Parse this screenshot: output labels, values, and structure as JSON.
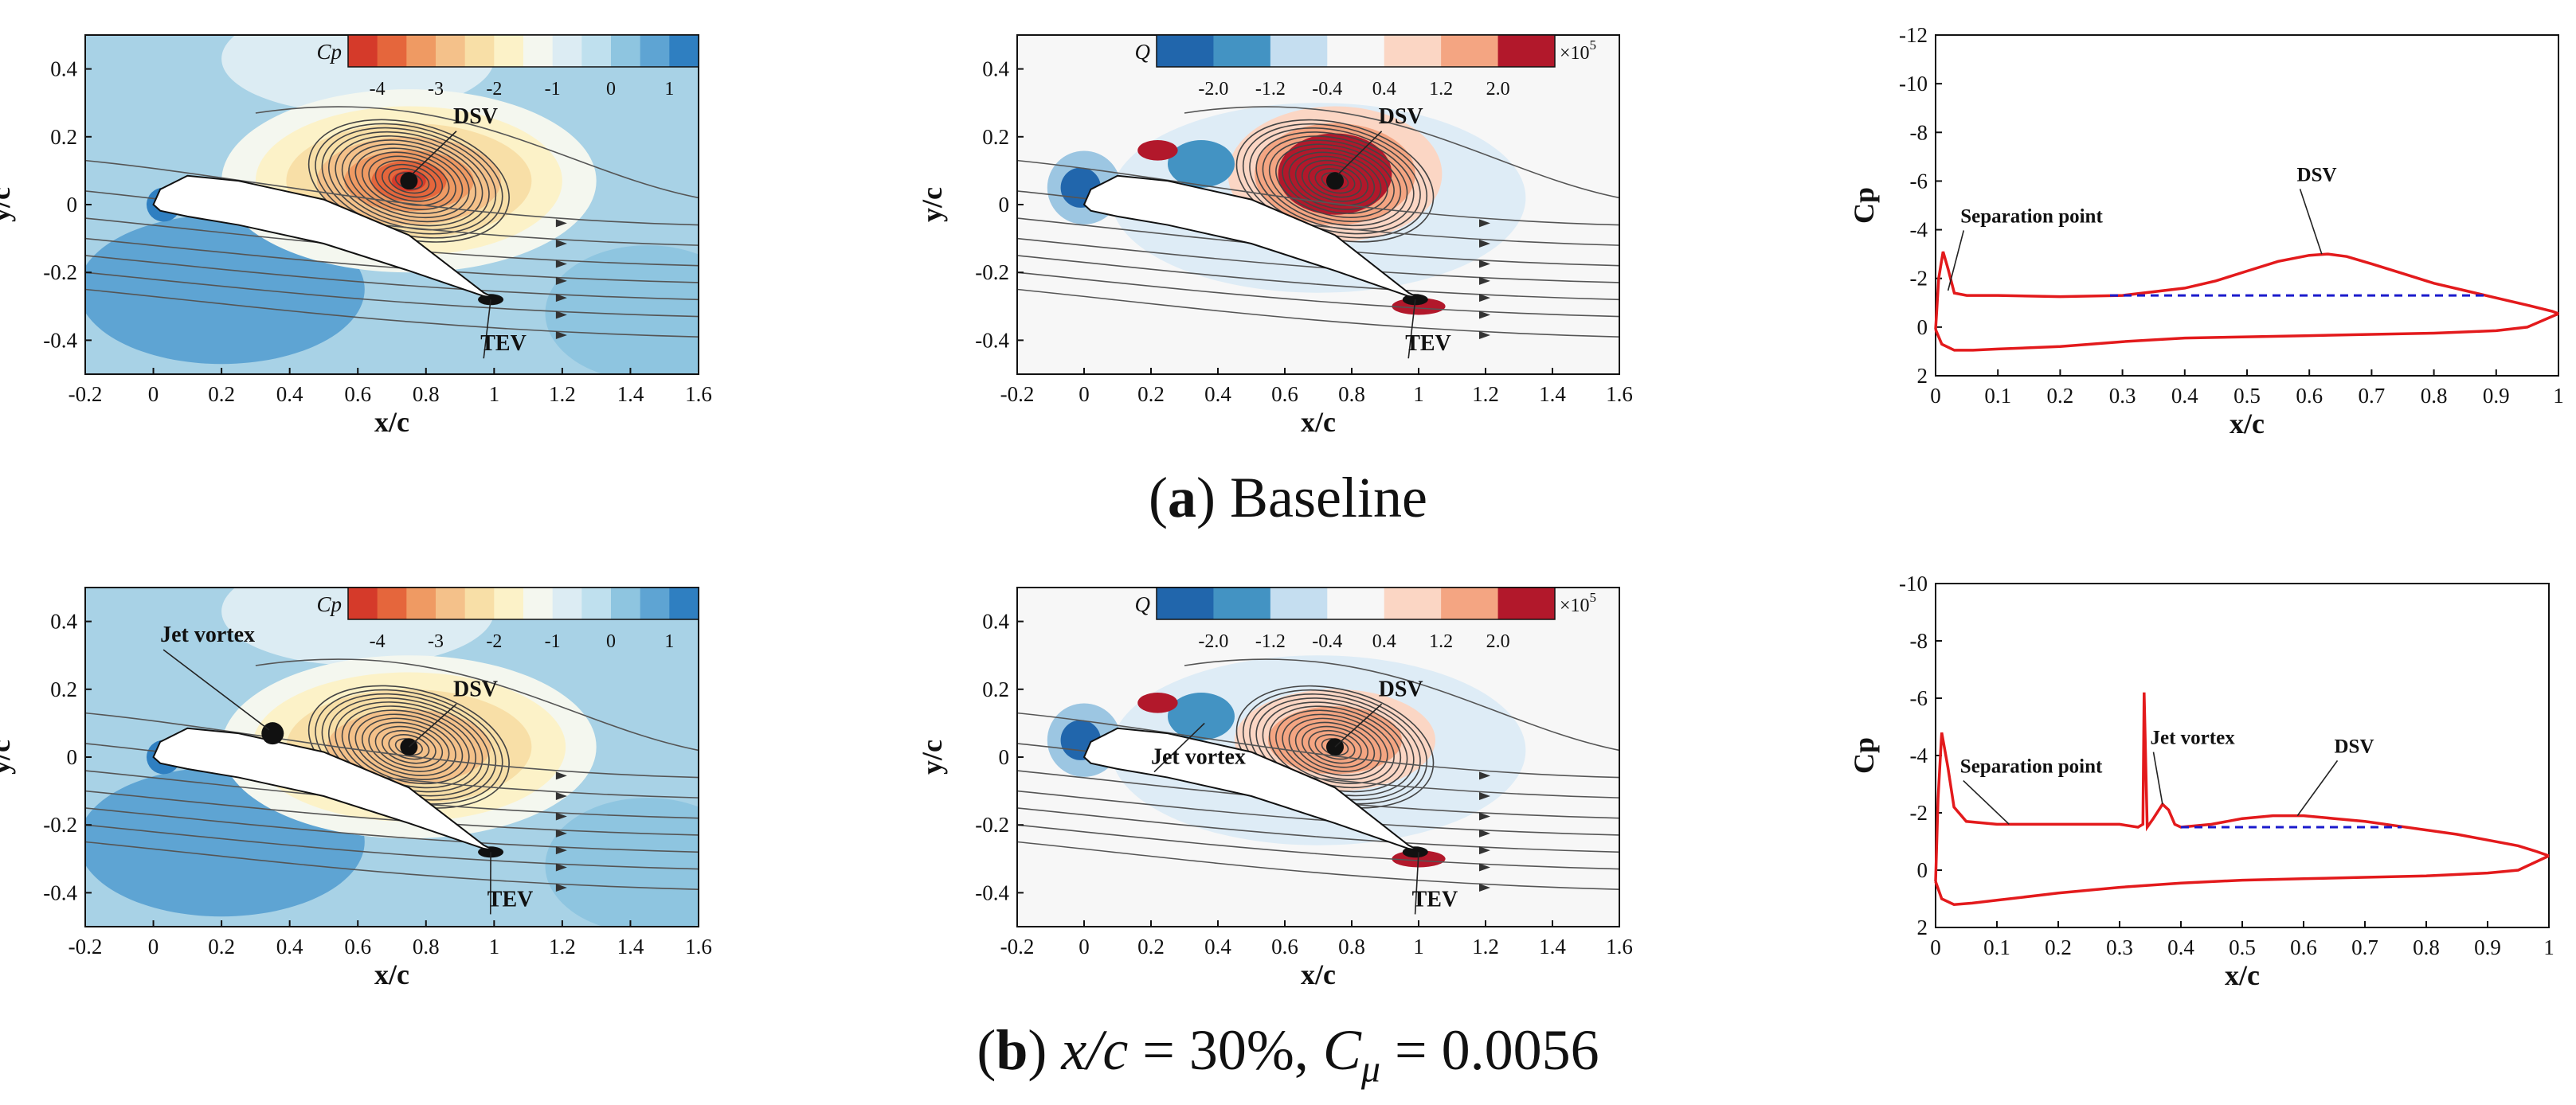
{
  "captions": {
    "a": {
      "letter": "a",
      "text": " Baseline"
    },
    "b": {
      "letter": "b",
      "xc": "x/c",
      "eq1": " = 30%, ",
      "cmu_c": "C",
      "cmu_sub": "μ",
      "eq2": " = 0.0056"
    }
  },
  "chart_data": [
    {
      "id": "a-cp-field",
      "type": "contour",
      "title": "",
      "xlabel": "x/c",
      "ylabel": "y/c",
      "xlim": [
        -0.2,
        1.6
      ],
      "ylim": [
        -0.5,
        0.5
      ],
      "xticks": [
        "-0.2",
        "0",
        "0.2",
        "0.4",
        "0.6",
        "0.8",
        "1",
        "1.2",
        "1.4",
        "1.6"
      ],
      "yticks": [
        "0.4",
        "0.2",
        "0",
        "-0.2",
        "-0.4"
      ],
      "colorbar": {
        "variable": "Cp",
        "ticks": [
          "-4",
          "-3",
          "-2",
          "-1",
          "0",
          "1"
        ],
        "range": [
          -4.5,
          1.5
        ],
        "colors": [
          "#d53a2a",
          "#e5663c",
          "#ef9a63",
          "#f4c18a",
          "#f8dfa7",
          "#fcf2c8",
          "#f4f7ef",
          "#dcecf3",
          "#bfe0ee",
          "#8ec5e0",
          "#5ea4d3",
          "#2f7fc1"
        ]
      },
      "annotations": [
        {
          "label": "DSV",
          "x": 0.88,
          "y": 0.24,
          "tx": 0.76,
          "ty": 0.09
        },
        {
          "label": "TEV",
          "x": 0.96,
          "y": -0.43,
          "tx": 0.99,
          "ty": -0.28
        }
      ],
      "vortex_centers": [
        {
          "x": 0.75,
          "y": 0.07
        }
      ]
    },
    {
      "id": "a-q-field",
      "type": "contour",
      "title": "",
      "xlabel": "x/c",
      "ylabel": "y/c",
      "xlim": [
        -0.2,
        1.6
      ],
      "ylim": [
        -0.5,
        0.5
      ],
      "xticks": [
        "-0.2",
        "0",
        "0.2",
        "0.4",
        "0.6",
        "0.8",
        "1",
        "1.2",
        "1.4",
        "1.6"
      ],
      "yticks": [
        "0.4",
        "0.2",
        "0",
        "-0.2",
        "-0.4"
      ],
      "colorbar": {
        "variable": "Q",
        "ticks": [
          "-2.0",
          "-1.2",
          "-0.4",
          "0.4",
          "1.2",
          "2.0"
        ],
        "multiplier": "×10^5",
        "range": [
          -2.8,
          2.8
        ],
        "colors": [
          "#2166ac",
          "#4393c3",
          "#c5def0",
          "#f7f7f7",
          "#fbd6c4",
          "#f4a582",
          "#b2182b"
        ]
      },
      "annotations": [
        {
          "label": "DSV",
          "x": 0.88,
          "y": 0.24,
          "tx": 0.76,
          "ty": 0.09
        },
        {
          "label": "TEV",
          "x": 0.96,
          "y": -0.43,
          "tx": 0.99,
          "ty": -0.28
        }
      ],
      "vortex_centers": [
        {
          "x": 0.75,
          "y": 0.07
        }
      ]
    },
    {
      "id": "a-cp-curve",
      "type": "line",
      "title": "",
      "xlabel": "x/c",
      "ylabel": "Cp",
      "xlim": [
        0,
        1
      ],
      "ylim": [
        2,
        -12
      ],
      "y_inverted": true,
      "xticks": [
        "0",
        "0.1",
        "0.2",
        "0.3",
        "0.4",
        "0.5",
        "0.6",
        "0.7",
        "0.8",
        "0.9",
        "1"
      ],
      "yticks": [
        "-12",
        "-10",
        "-8",
        "-6",
        "-4",
        "-2",
        "0",
        "2"
      ],
      "series": [
        {
          "name": "upper surface",
          "x": [
            0,
            0.005,
            0.012,
            0.02,
            0.03,
            0.05,
            0.1,
            0.2,
            0.3,
            0.4,
            0.45,
            0.5,
            0.55,
            0.6,
            0.63,
            0.66,
            0.7,
            0.75,
            0.8,
            0.85,
            0.9,
            0.95,
            0.99,
            1.0
          ],
          "y": [
            0.1,
            -2.0,
            -3.1,
            -2.4,
            -1.4,
            -1.3,
            -1.3,
            -1.25,
            -1.3,
            -1.6,
            -1.9,
            -2.3,
            -2.7,
            -2.95,
            -3.0,
            -2.9,
            -2.6,
            -2.2,
            -1.8,
            -1.5,
            -1.2,
            -0.9,
            -0.65,
            -0.55
          ]
        },
        {
          "name": "lower surface",
          "x": [
            0,
            0.01,
            0.03,
            0.06,
            0.1,
            0.2,
            0.3,
            0.4,
            0.5,
            0.6,
            0.7,
            0.8,
            0.9,
            0.95,
            1.0
          ],
          "y": [
            0.1,
            0.7,
            0.95,
            0.95,
            0.9,
            0.8,
            0.6,
            0.45,
            0.4,
            0.35,
            0.3,
            0.25,
            0.15,
            0.0,
            -0.55
          ]
        },
        {
          "name": "plateau",
          "dashed": true,
          "x": [
            0.28,
            0.88
          ],
          "y": [
            -1.3,
            -1.3
          ]
        }
      ],
      "annotations": [
        {
          "label": "Separation point",
          "x": 0.04,
          "y": -4.3,
          "tx": 0.02,
          "ty": -1.5
        },
        {
          "label": "DSV",
          "x": 0.58,
          "y": -6.0,
          "tx": 0.62,
          "ty": -3.0
        }
      ]
    },
    {
      "id": "b-cp-field",
      "type": "contour",
      "title": "",
      "xlabel": "x/c",
      "ylabel": "y/c",
      "xlim": [
        -0.2,
        1.6
      ],
      "ylim": [
        -0.5,
        0.5
      ],
      "xticks": [
        "-0.2",
        "0",
        "0.2",
        "0.4",
        "0.6",
        "0.8",
        "1",
        "1.2",
        "1.4",
        "1.6"
      ],
      "yticks": [
        "0.4",
        "0.2",
        "0",
        "-0.2",
        "-0.4"
      ],
      "colorbar": {
        "variable": "Cp",
        "ticks": [
          "-4",
          "-3",
          "-2",
          "-1",
          "0",
          "1"
        ],
        "range": [
          -4.5,
          1.5
        ],
        "colors": [
          "#d53a2a",
          "#e5663c",
          "#ef9a63",
          "#f4c18a",
          "#f8dfa7",
          "#fcf2c8",
          "#f4f7ef",
          "#dcecf3",
          "#bfe0ee",
          "#8ec5e0",
          "#5ea4d3",
          "#2f7fc1"
        ]
      },
      "annotations": [
        {
          "label": "Jet vortex",
          "x": 0.02,
          "y": 0.34,
          "tx": 0.34,
          "ty": 0.08
        },
        {
          "label": "DSV",
          "x": 0.88,
          "y": 0.18,
          "tx": 0.75,
          "ty": 0.03
        },
        {
          "label": "TEV",
          "x": 0.98,
          "y": -0.44,
          "tx": 0.99,
          "ty": -0.28
        }
      ],
      "vortex_centers": [
        {
          "x": 0.75,
          "y": 0.03
        }
      ]
    },
    {
      "id": "b-q-field",
      "type": "contour",
      "title": "",
      "xlabel": "x/c",
      "ylabel": "y/c",
      "xlim": [
        -0.2,
        1.6
      ],
      "ylim": [
        -0.5,
        0.5
      ],
      "xticks": [
        "-0.2",
        "0",
        "0.2",
        "0.4",
        "0.6",
        "0.8",
        "1",
        "1.2",
        "1.4",
        "1.6"
      ],
      "yticks": [
        "0.4",
        "0.2",
        "0",
        "-0.2",
        "-0.4"
      ],
      "colorbar": {
        "variable": "Q",
        "ticks": [
          "-2.0",
          "-1.2",
          "-0.4",
          "0.4",
          "1.2",
          "2.0"
        ],
        "multiplier": "×10^5",
        "range": [
          -2.8,
          2.8
        ],
        "colors": [
          "#2166ac",
          "#4393c3",
          "#c5def0",
          "#f7f7f7",
          "#fbd6c4",
          "#f4a582",
          "#b2182b"
        ]
      },
      "annotations": [
        {
          "label": "DSV",
          "x": 0.88,
          "y": 0.18,
          "tx": 0.75,
          "ty": 0.03
        },
        {
          "label": "Jet vortex",
          "x": 0.2,
          "y": -0.02,
          "tx": 0.36,
          "ty": 0.1
        },
        {
          "label": "TEV",
          "x": 0.98,
          "y": -0.44,
          "tx": 1.0,
          "ty": -0.28
        }
      ],
      "vortex_centers": [
        {
          "x": 0.75,
          "y": 0.03
        }
      ]
    },
    {
      "id": "b-cp-curve",
      "type": "line",
      "title": "",
      "xlabel": "x/c",
      "ylabel": "Cp",
      "xlim": [
        0,
        1
      ],
      "ylim": [
        2,
        -10
      ],
      "y_inverted": true,
      "xticks": [
        "0",
        "0.1",
        "0.2",
        "0.3",
        "0.4",
        "0.5",
        "0.6",
        "0.7",
        "0.8",
        "0.9",
        "1"
      ],
      "yticks": [
        "-10",
        "-8",
        "-6",
        "-4",
        "-2",
        "0",
        "2"
      ],
      "series": [
        {
          "name": "upper surface",
          "x": [
            0,
            0.004,
            0.01,
            0.02,
            0.03,
            0.05,
            0.1,
            0.2,
            0.3,
            0.33,
            0.338,
            0.34,
            0.345,
            0.355,
            0.37,
            0.38,
            0.39,
            0.4,
            0.45,
            0.5,
            0.55,
            0.6,
            0.65,
            0.7,
            0.75,
            0.8,
            0.85,
            0.9,
            0.95,
            0.98,
            1.0
          ],
          "y": [
            0.4,
            -2.5,
            -4.8,
            -3.6,
            -2.2,
            -1.7,
            -1.6,
            -1.6,
            -1.6,
            -1.5,
            -1.6,
            -6.2,
            -1.5,
            -1.8,
            -2.3,
            -2.1,
            -1.6,
            -1.5,
            -1.6,
            -1.8,
            -1.9,
            -1.9,
            -1.8,
            -1.7,
            -1.55,
            -1.4,
            -1.25,
            -1.05,
            -0.85,
            -0.65,
            -0.5
          ]
        },
        {
          "name": "lower surface",
          "x": [
            0,
            0.01,
            0.03,
            0.06,
            0.1,
            0.2,
            0.3,
            0.4,
            0.5,
            0.6,
            0.7,
            0.8,
            0.9,
            0.95,
            1.0
          ],
          "y": [
            0.4,
            1.0,
            1.2,
            1.15,
            1.05,
            0.8,
            0.6,
            0.45,
            0.35,
            0.3,
            0.25,
            0.2,
            0.1,
            0.0,
            -0.5
          ]
        },
        {
          "name": "plateau",
          "dashed": true,
          "x": [
            0.4,
            0.76
          ],
          "y": [
            -1.5,
            -1.5
          ]
        }
      ],
      "annotations": [
        {
          "label": "Separation point",
          "x": 0.04,
          "y": -3.4,
          "tx": 0.12,
          "ty": -1.6
        },
        {
          "label": "Jet vortex",
          "x": 0.35,
          "y": -4.4,
          "tx": 0.37,
          "ty": -2.3
        },
        {
          "label": "DSV",
          "x": 0.65,
          "y": -4.1,
          "tx": 0.59,
          "ty": -1.9
        }
      ]
    }
  ]
}
